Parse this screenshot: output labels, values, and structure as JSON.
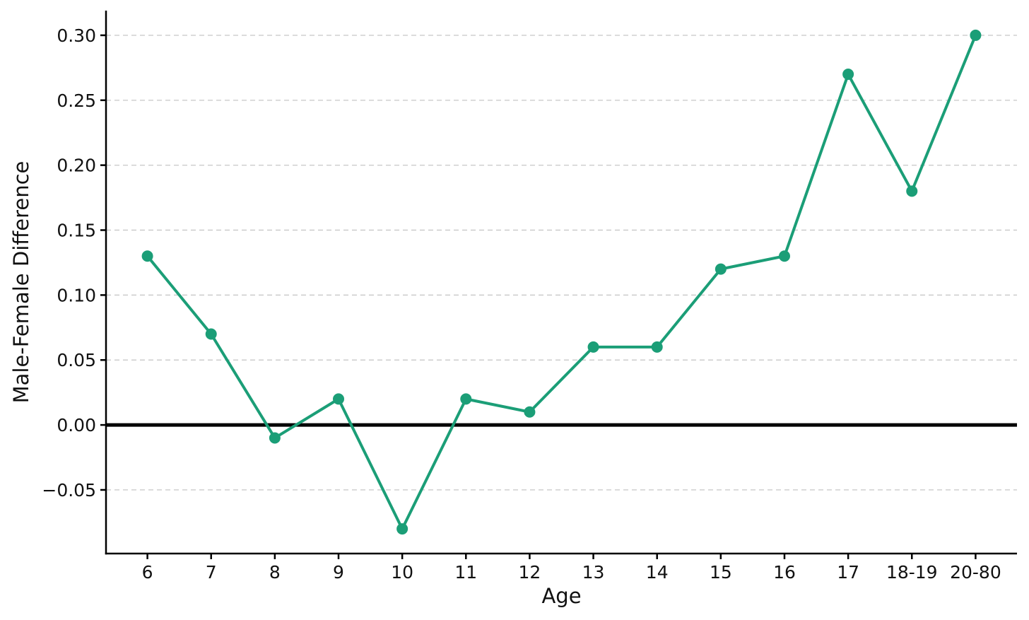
{
  "chart_data": {
    "type": "line",
    "title": "",
    "xlabel": "Age",
    "ylabel": "Male-Female Difference",
    "categories": [
      "6",
      "7",
      "8",
      "9",
      "10",
      "11",
      "12",
      "13",
      "14",
      "15",
      "16",
      "17",
      "18-19",
      "20-80"
    ],
    "series": [
      {
        "name": "Male-Female Difference",
        "values": [
          0.13,
          0.07,
          -0.01,
          0.02,
          -0.08,
          0.02,
          0.01,
          0.06,
          0.06,
          0.12,
          0.13,
          0.27,
          0.18,
          0.3
        ]
      }
    ],
    "ylim": [
      -0.099,
      0.319
    ],
    "yticks": [
      0.3,
      0.25,
      0.2,
      0.15,
      0.1,
      0.05,
      0.0,
      -0.05
    ],
    "ytick_labels": [
      "0.30",
      "0.25",
      "0.20",
      "0.15",
      "0.10",
      "0.05",
      "0.00",
      "−0.05"
    ],
    "grid": "horizontal-dashed",
    "legend": "none",
    "zero_line": true,
    "colors": {
      "line": "#1b9e77",
      "marker": "#1b9e77",
      "zero_line": "#000000",
      "grid": "#cccccc",
      "axis": "#000000",
      "text": "#111111"
    }
  }
}
